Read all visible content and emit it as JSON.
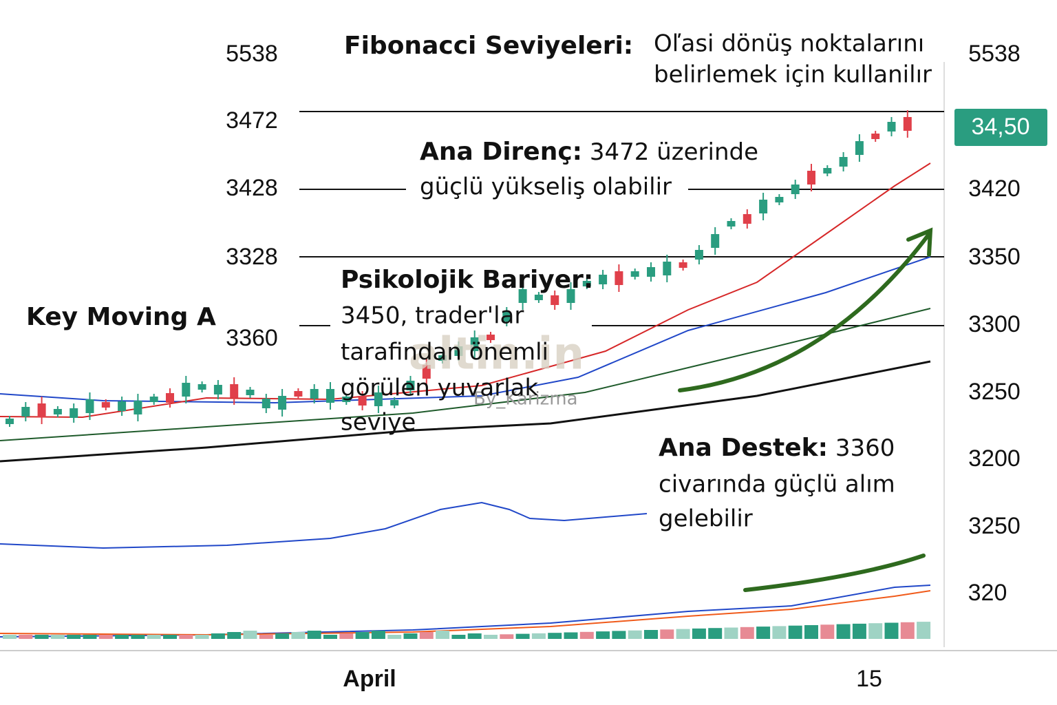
{
  "header": {
    "title": "Fibonacci Seviyeleri:",
    "subtitle_lines": [
      "Oľasi dönüş noktalarını",
      "belirlemek için kullanilır"
    ]
  },
  "left_axis": [
    "5538",
    "3472",
    "3428",
    "3328",
    "3360"
  ],
  "right_axis": [
    "5538",
    "3420",
    "3350",
    "3300",
    "3250",
    "3200",
    "3250",
    "320"
  ],
  "price_badge": "34,50",
  "annotations": {
    "resistance": {
      "label": "Ana Direnç:",
      "lines": [
        " 3472 üzerinde",
        "güçlü yükseliş olabilir"
      ]
    },
    "barrier": {
      "label": "Psikolojik Bariyer:",
      "lines": [
        "3450, trader'lar",
        "tarafindan önemli",
        "görülen yuvarlak",
        "seviye"
      ]
    },
    "support": {
      "label": "Ana Destek:",
      "lines": [
        " 3360",
        "civarında güçlü alım",
        "gelebilir"
      ]
    },
    "moving_averages": "Key Moving A"
  },
  "x_axis": [
    "April",
    "15"
  ],
  "watermark": {
    "brand": "altin.in",
    "author": "By_Karizma"
  }
}
